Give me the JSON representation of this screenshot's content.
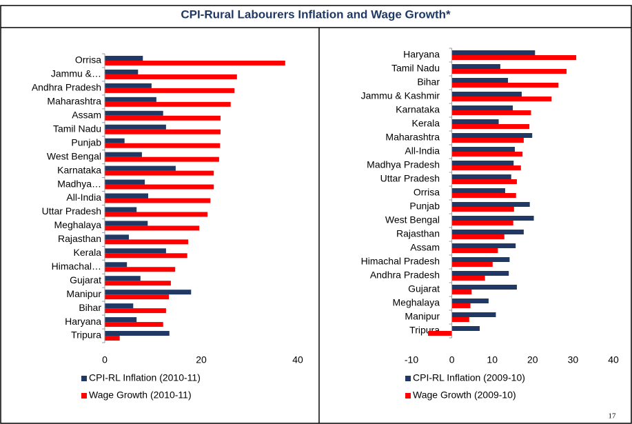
{
  "header": {
    "title": "CPI-Rural Labourers Inflation and Wage Growth*",
    "page_number": "17"
  },
  "chart_data": [
    {
      "type": "bar",
      "orientation": "horizontal",
      "categories": [
        "Orrisa",
        "Jammu &…",
        "Andhra Pradesh",
        "Maharashtra",
        "Assam",
        "Tamil Nadu",
        "Punjab",
        "West Bengal",
        "Karnataka",
        "Madhya…",
        "All-India",
        "Uttar Pradesh",
        "Meghalaya",
        "Rajasthan",
        "Kerala",
        "Himachal…",
        "Gujarat",
        "Manipur",
        "Bihar",
        "Haryana",
        "Tripura"
      ],
      "series": [
        {
          "name": "CPI-RL Inflation (2010-11)",
          "color": "#1f3864",
          "values": [
            7.9,
            6.9,
            9.7,
            10.7,
            12.1,
            12.7,
            4.1,
            7.7,
            14.7,
            8.3,
            9.0,
            6.6,
            8.9,
            5.0,
            12.7,
            4.6,
            7.4,
            17.9,
            5.9,
            6.6,
            13.4
          ]
        },
        {
          "name": "Wage Growth (2010-11)",
          "color": "#ff0000",
          "values": [
            37.4,
            27.4,
            26.9,
            26.1,
            24.0,
            24.0,
            23.9,
            23.7,
            22.6,
            22.6,
            21.9,
            21.3,
            19.6,
            17.3,
            17.1,
            14.6,
            13.7,
            13.3,
            12.7,
            12.1,
            3.1
          ]
        }
      ],
      "xlim": [
        0,
        40
      ],
      "xticks": [
        0,
        20,
        40
      ],
      "legend": "bottom"
    },
    {
      "type": "bar",
      "orientation": "horizontal",
      "categories": [
        "Haryana",
        "Tamil Nadu",
        "Bihar",
        "Jammu & Kashmir",
        "Karnataka",
        "Kerala",
        "Maharashtra",
        "All-India",
        "Madhya Pradesh",
        "Uttar Pradesh",
        "Orrisa",
        "Punjab",
        "West Bengal",
        "Rajasthan",
        "Assam",
        "Himachal Pradesh",
        "Andhra Pradesh",
        "Gujarat",
        "Meghalaya",
        "Manipur",
        "Tripura"
      ],
      "series": [
        {
          "name": "CPI-RL Inflation (2009-10)",
          "color": "#1f3864",
          "values": [
            20.6,
            12.0,
            13.9,
            17.3,
            15.1,
            11.6,
            19.9,
            15.6,
            15.3,
            14.7,
            13.2,
            19.3,
            20.3,
            17.8,
            15.8,
            14.3,
            14.1,
            16.1,
            9.1,
            10.9,
            6.9
          ]
        },
        {
          "name": "Wage Growth (2009-10)",
          "color": "#ff0000",
          "values": [
            30.8,
            28.4,
            26.4,
            24.7,
            19.6,
            19.2,
            17.8,
            17.5,
            17.1,
            16.1,
            15.9,
            15.4,
            15.2,
            13.0,
            11.4,
            10.1,
            8.2,
            4.9,
            4.6,
            4.3,
            -5.9
          ]
        }
      ],
      "xlim": [
        -10,
        40
      ],
      "xticks": [
        -10,
        0,
        10,
        20,
        30,
        40
      ],
      "legend": "bottom"
    }
  ]
}
